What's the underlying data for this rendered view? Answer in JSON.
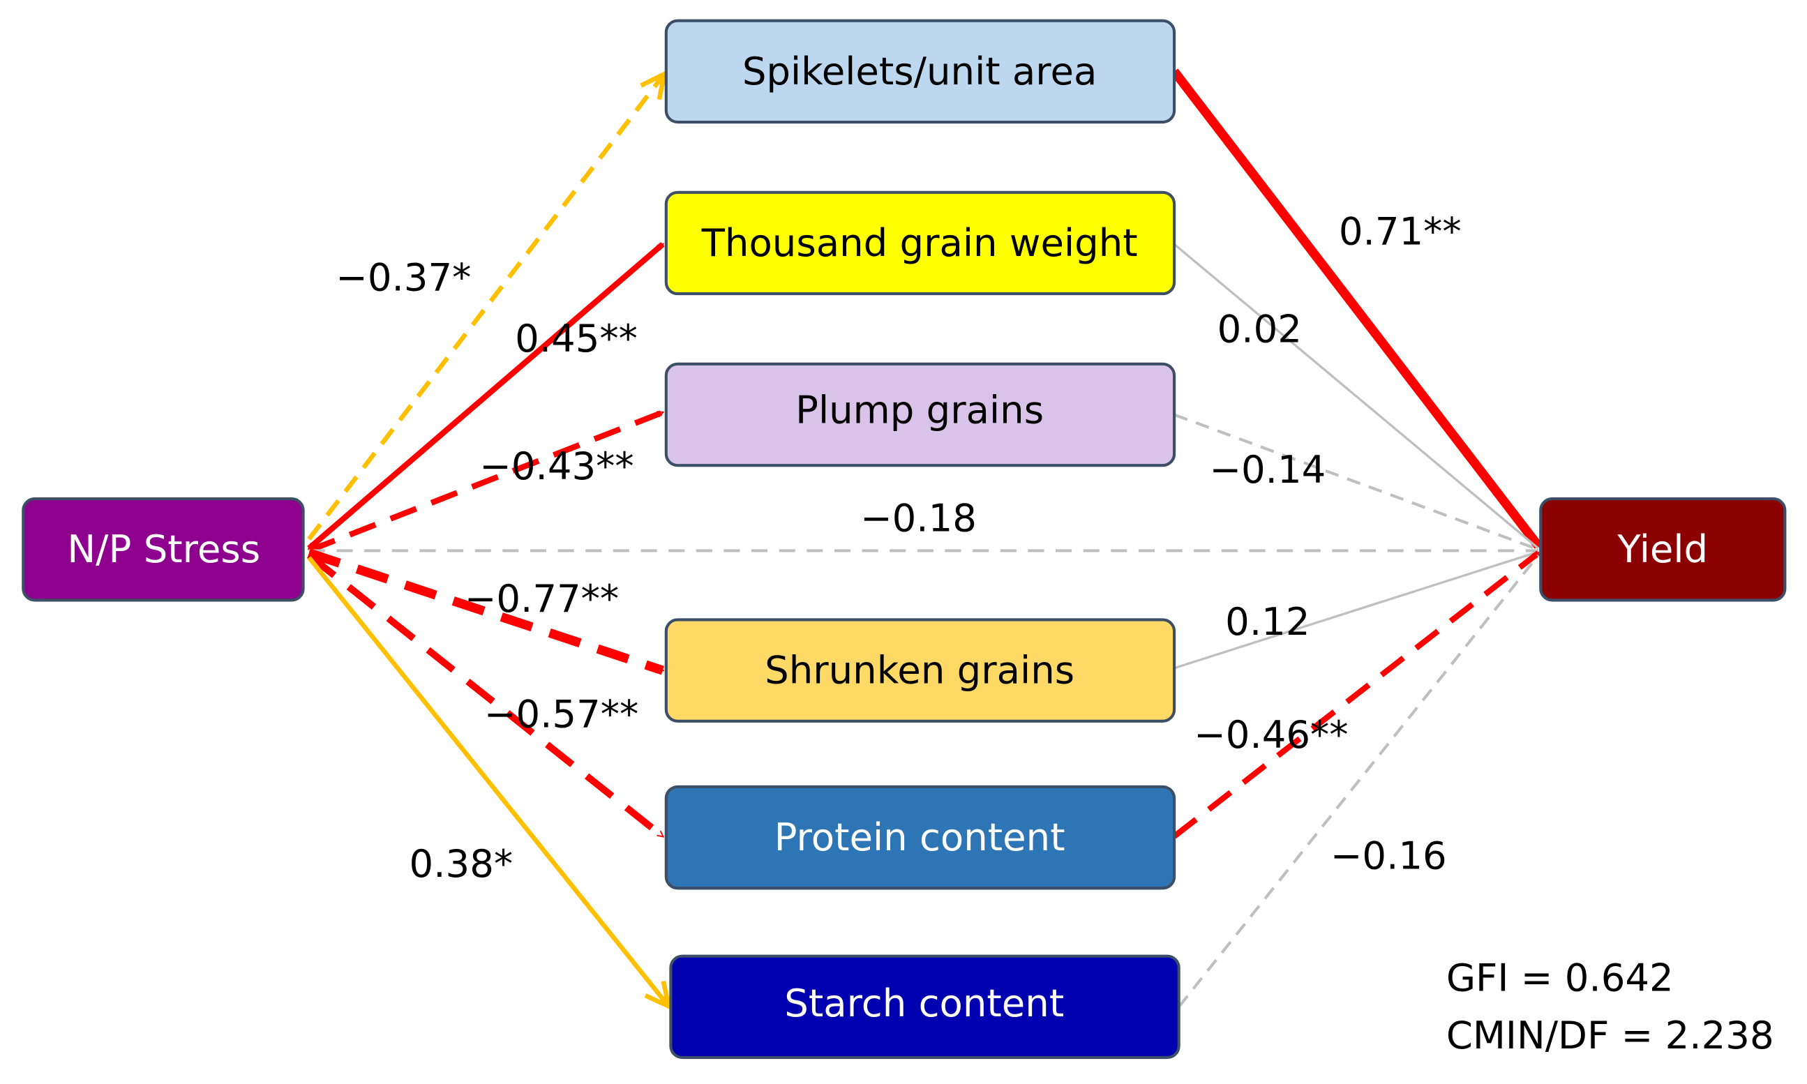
{
  "nodes": [
    {
      "label": "N/P Stress"
    },
    {
      "label": "Spikelets/unit area"
    },
    {
      "label": "Thousand grain weight"
    },
    {
      "label": "Plump grains"
    },
    {
      "label": "Shrunken grains"
    },
    {
      "label": "Protein content"
    },
    {
      "label": "Starch content"
    },
    {
      "label": "Yield"
    }
  ],
  "edges": [
    {
      "label": "−0.37*"
    },
    {
      "label": "0.45**"
    },
    {
      "label": "−0.43**"
    },
    {
      "label": "−0.18"
    },
    {
      "label": "−0.77**"
    },
    {
      "label": "−0.57**"
    },
    {
      "label": "0.38*"
    },
    {
      "label": "0.71**"
    },
    {
      "label": "0.02"
    },
    {
      "label": "−0.14"
    },
    {
      "label": "0.12"
    },
    {
      "label": "−0.46**"
    },
    {
      "label": "−0.16"
    }
  ],
  "fit_stats": [
    "GFI = 0.642",
    "CMIN/DF = 2.238"
  ]
}
